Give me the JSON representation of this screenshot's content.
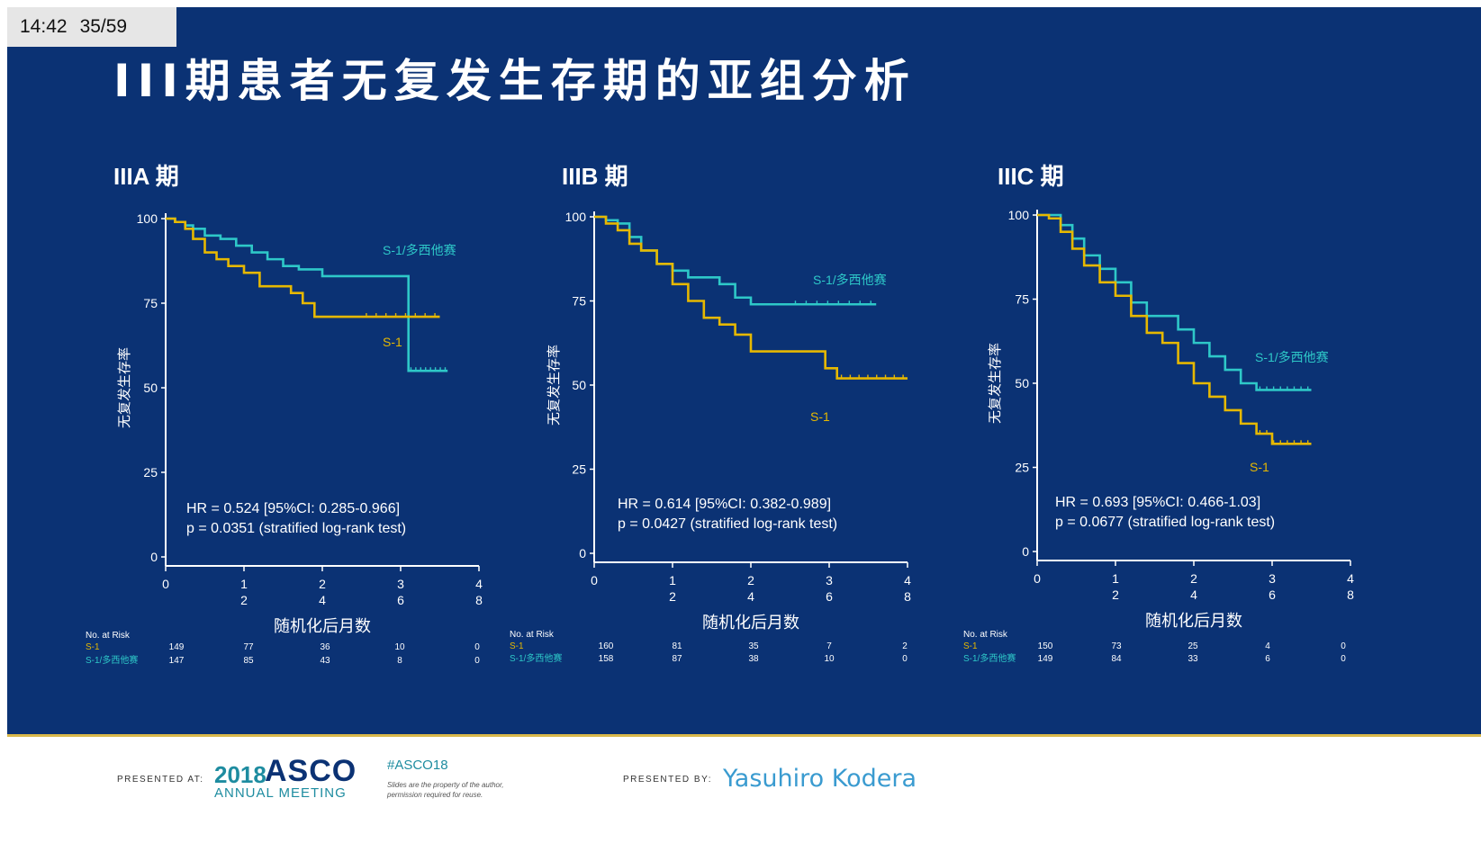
{
  "hud": {
    "time": "14:42",
    "page": "35/59"
  },
  "slide_title": "III期患者无复发生存期的亚组分析",
  "footer": {
    "presented_at_label": "PRESENTED AT:",
    "asco_year": "2018",
    "asco_name": "ASCO",
    "asco_meeting": "ANNUAL MEETING",
    "hashtag": "#ASCO18",
    "disclaimer_line1": "Slides are the property of the author,",
    "disclaimer_line2": "permission required for reuse.",
    "presented_by_label": "PRESENTED BY:",
    "presenter": "Yasuhiro Kodera"
  },
  "colors": {
    "background": "#0b3274",
    "s1": "#e6b800",
    "s1_combo": "#2ec8c8",
    "axis": "#ffffff",
    "footer_rule": "#d9b84a"
  },
  "chart_data": [
    {
      "type": "line",
      "title": "IIIA 期",
      "ylabel": "无复发生存率",
      "xlabel": "随机化后月数",
      "ylim": [
        0,
        100
      ],
      "y_ticks": [
        "100",
        "75",
        "50",
        "25",
        "0"
      ],
      "x_ticks_top": [
        "0",
        "1",
        "2",
        "3",
        "4"
      ],
      "x_ticks_bottom": [
        "2",
        "4",
        "6",
        "8"
      ],
      "xlim": [
        0,
        4
      ],
      "series": [
        {
          "name": "S-1/多西他赛",
          "key": "combo",
          "x": [
            0,
            0.12,
            0.25,
            0.35,
            0.5,
            0.7,
            0.9,
            1.1,
            1.3,
            1.5,
            1.7,
            2.0,
            2.5,
            3.0,
            3.1,
            3.1,
            3.6
          ],
          "y": [
            100,
            99,
            98,
            97,
            95,
            94,
            92,
            90,
            88,
            86,
            85,
            83,
            83,
            83,
            83,
            55,
            55
          ]
        },
        {
          "name": "S-1",
          "key": "s1",
          "x": [
            0,
            0.12,
            0.25,
            0.35,
            0.5,
            0.65,
            0.8,
            1.0,
            1.2,
            1.4,
            1.6,
            1.75,
            1.9,
            2.5,
            3.0,
            3.5
          ],
          "y": [
            100,
            99,
            97,
            94,
            90,
            88,
            86,
            84,
            80,
            80,
            78,
            75,
            71,
            71,
            71,
            71
          ]
        }
      ],
      "series_labels": [
        "S-1/多西他赛",
        "S-1"
      ],
      "annotation_hr": "HR = 0.524  [95%CI: 0.285-0.966]",
      "annotation_p": "p = 0.0351  (stratified log-rank test)",
      "risk_table": {
        "header": "No. at Risk",
        "rows": [
          {
            "label": "S-1",
            "values": [
              "149",
              "77",
              "36",
              "10",
              "0"
            ]
          },
          {
            "label": "S-1/多西他赛",
            "values": [
              "147",
              "85",
              "43",
              "8",
              "0"
            ]
          }
        ]
      }
    },
    {
      "type": "line",
      "title": "IIIB 期",
      "ylabel": "无复发生存率",
      "xlabel": "随机化后月数",
      "ylim": [
        0,
        100
      ],
      "y_ticks": [
        "100",
        "75",
        "50",
        "25",
        "0"
      ],
      "x_ticks_top": [
        "0",
        "1",
        "2",
        "3",
        "4"
      ],
      "x_ticks_bottom": [
        "2",
        "4",
        "6",
        "8"
      ],
      "xlim": [
        0,
        4
      ],
      "series": [
        {
          "name": "S-1/多西他赛",
          "key": "combo",
          "x": [
            0,
            0.15,
            0.3,
            0.45,
            0.6,
            0.8,
            1.0,
            1.2,
            1.4,
            1.6,
            1.8,
            2.0,
            2.5,
            3.0,
            3.6
          ],
          "y": [
            100,
            99,
            98,
            94,
            90,
            86,
            84,
            82,
            82,
            80,
            76,
            74,
            74,
            74,
            74
          ]
        },
        {
          "name": "S-1",
          "key": "s1",
          "x": [
            0,
            0.15,
            0.3,
            0.45,
            0.6,
            0.8,
            1.0,
            1.2,
            1.4,
            1.6,
            1.8,
            2.0,
            2.4,
            2.8,
            2.95,
            3.1,
            3.5,
            4.0
          ],
          "y": [
            100,
            98,
            96,
            92,
            90,
            86,
            80,
            75,
            70,
            68,
            65,
            60,
            60,
            60,
            55,
            52,
            52,
            52
          ]
        }
      ],
      "series_labels": [
        "S-1/多西他赛",
        "S-1"
      ],
      "annotation_hr": "HR = 0.614  [95%CI: 0.382-0.989]",
      "annotation_p": "p = 0.0427  (stratified log-rank test)",
      "risk_table": {
        "header": "No. at Risk",
        "rows": [
          {
            "label": "S-1",
            "values": [
              "160",
              "81",
              "35",
              "7",
              "2"
            ]
          },
          {
            "label": "S-1/多西他赛",
            "values": [
              "158",
              "87",
              "38",
              "10",
              "0"
            ]
          }
        ]
      }
    },
    {
      "type": "line",
      "title": "IIIC 期",
      "ylabel": "无复发生存率",
      "xlabel": "随机化后月数",
      "ylim": [
        0,
        100
      ],
      "y_ticks": [
        "100",
        "75",
        "50",
        "25",
        "0"
      ],
      "x_ticks_top": [
        "0",
        "1",
        "2",
        "3",
        "4"
      ],
      "x_ticks_bottom": [
        "2",
        "4",
        "6",
        "8"
      ],
      "xlim": [
        0,
        4
      ],
      "series": [
        {
          "name": "S-1/多西他赛",
          "key": "combo",
          "x": [
            0,
            0.15,
            0.3,
            0.45,
            0.6,
            0.8,
            1.0,
            1.2,
            1.4,
            1.6,
            1.8,
            2.0,
            2.2,
            2.4,
            2.6,
            2.8,
            3.0,
            3.5
          ],
          "y": [
            100,
            100,
            97,
            93,
            88,
            84,
            80,
            74,
            70,
            70,
            66,
            62,
            58,
            54,
            50,
            48,
            48,
            48
          ]
        },
        {
          "name": "S-1",
          "key": "s1",
          "x": [
            0,
            0.15,
            0.3,
            0.45,
            0.6,
            0.8,
            1.0,
            1.2,
            1.4,
            1.6,
            1.8,
            2.0,
            2.2,
            2.4,
            2.6,
            2.8,
            3.0,
            3.5
          ],
          "y": [
            100,
            99,
            95,
            90,
            85,
            80,
            76,
            70,
            65,
            62,
            56,
            50,
            46,
            42,
            38,
            35,
            32,
            32
          ]
        }
      ],
      "series_labels": [
        "S-1/多西他赛",
        "S-1"
      ],
      "annotation_hr": "HR = 0.693  [95%CI: 0.466-1.03]",
      "annotation_p": "p = 0.0677  (stratified log-rank test)",
      "risk_table": {
        "header": "No. at Risk",
        "rows": [
          {
            "label": "S-1",
            "values": [
              "150",
              "73",
              "25",
              "4",
              "0"
            ]
          },
          {
            "label": "S-1/多西他赛",
            "values": [
              "149",
              "84",
              "33",
              "6",
              "0"
            ]
          }
        ]
      }
    }
  ]
}
